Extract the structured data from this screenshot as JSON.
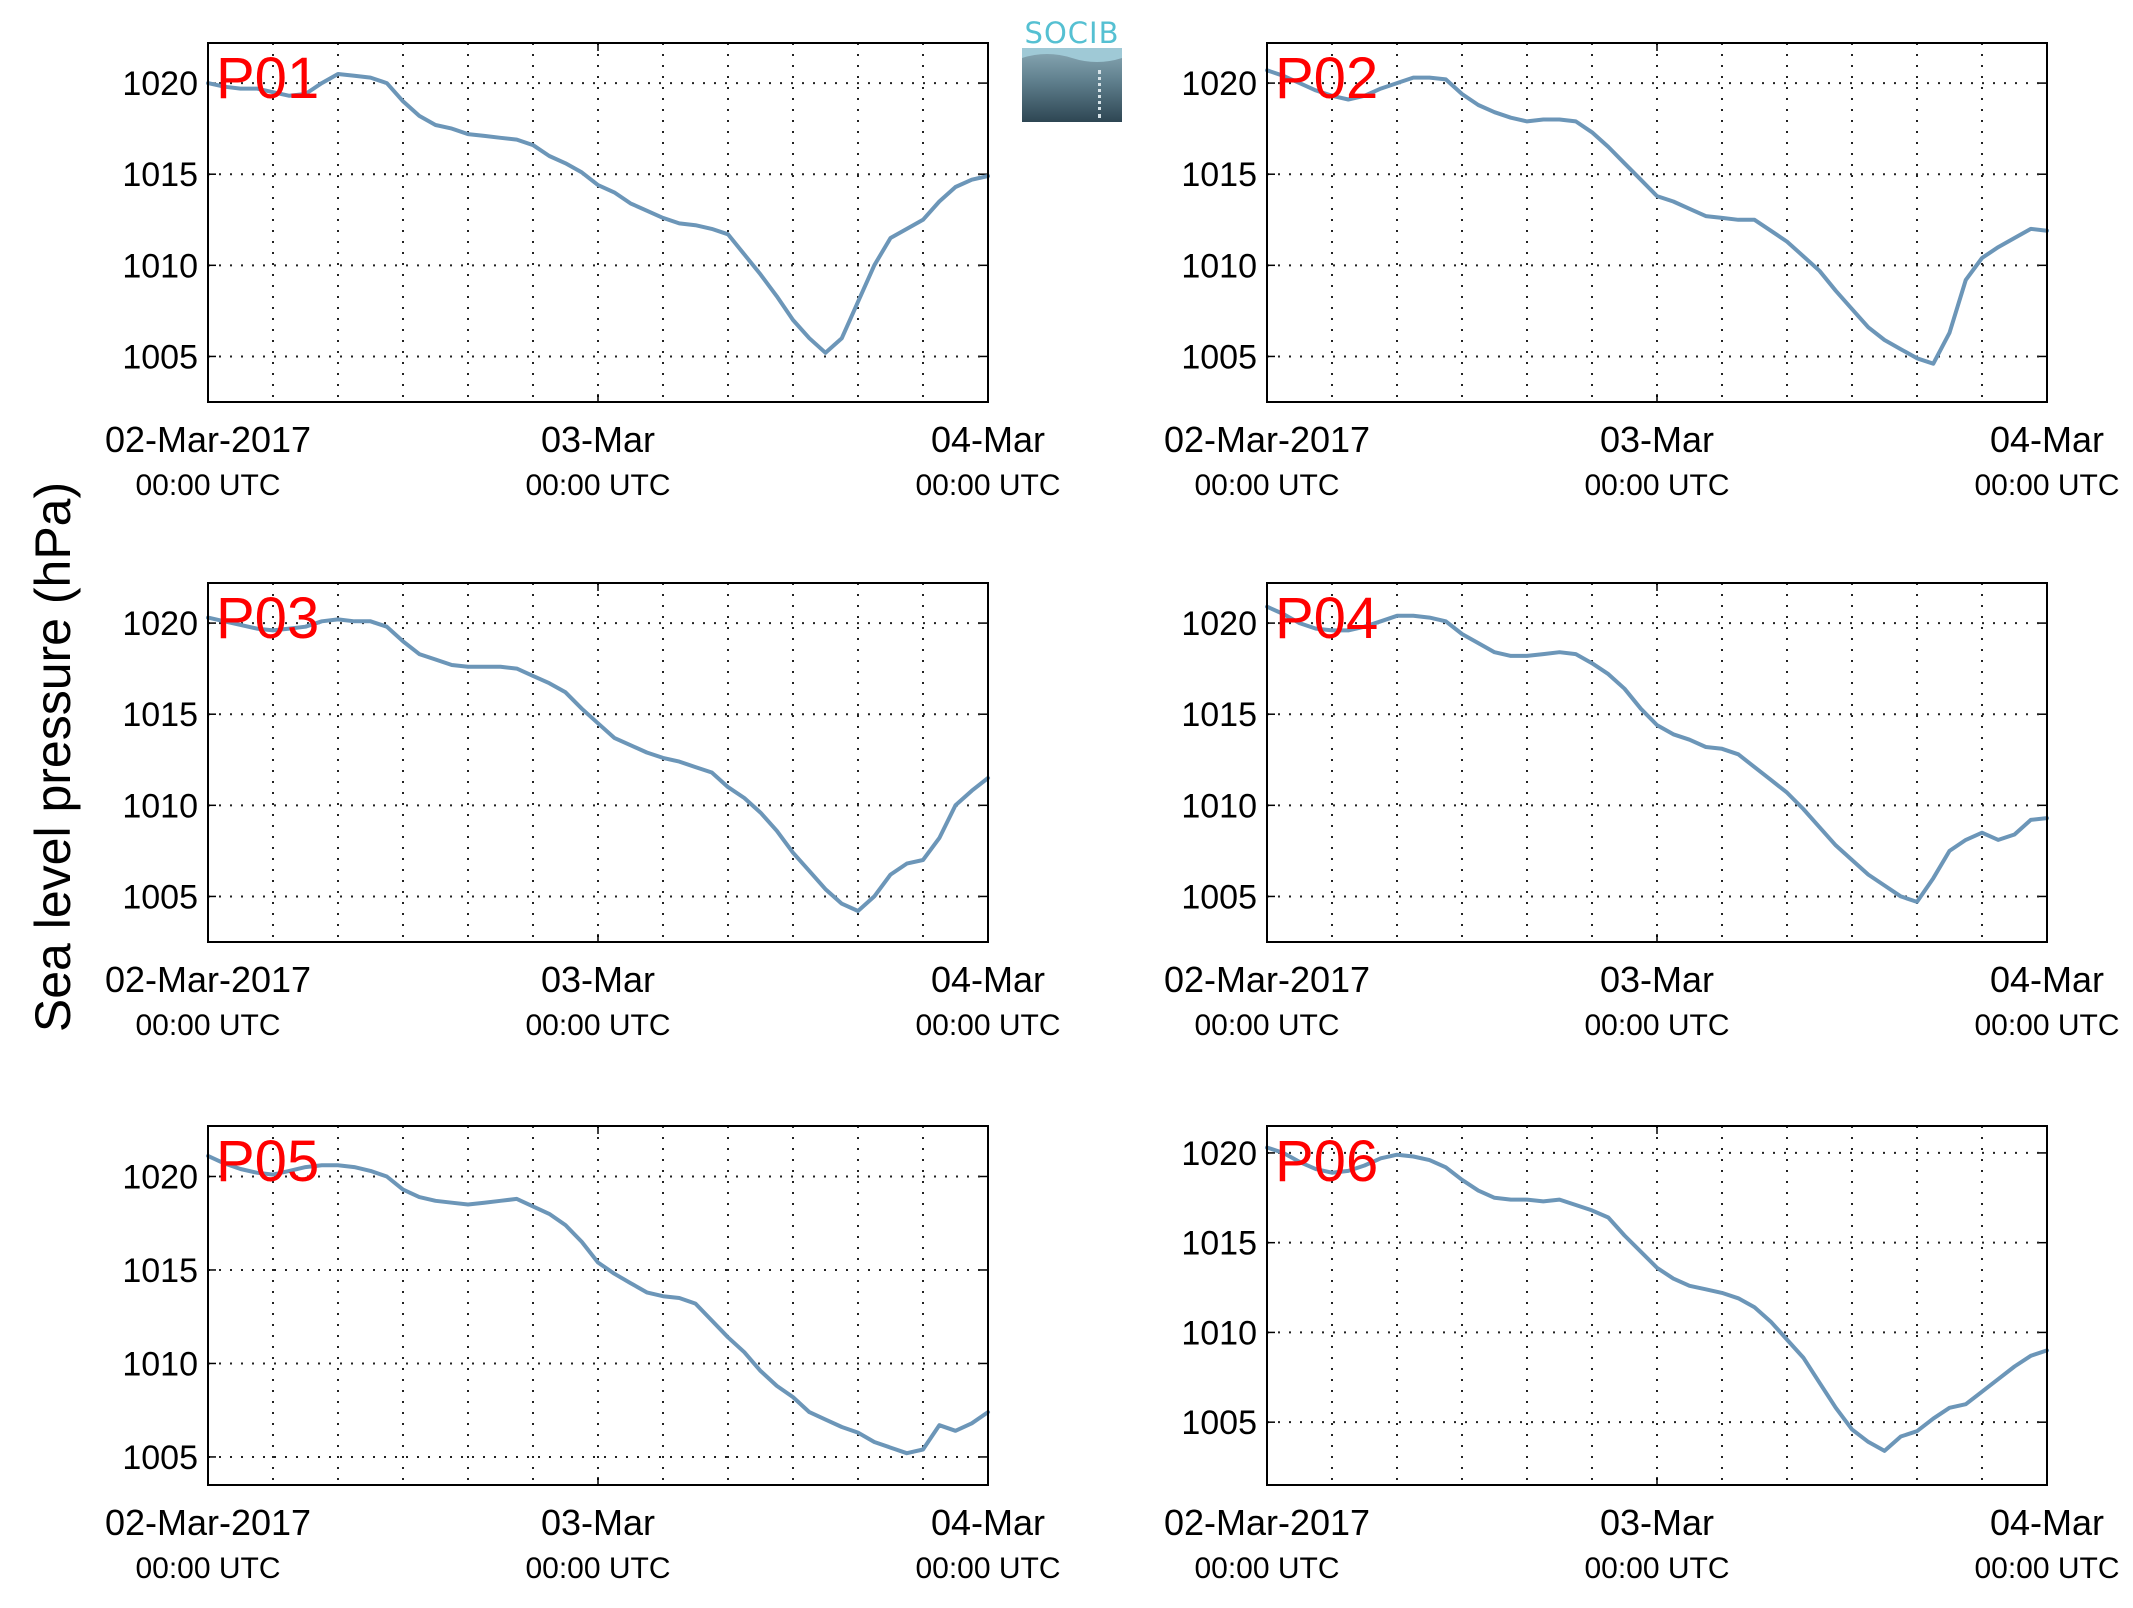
{
  "figure": {
    "ylabel": "Sea level pressure (hPa)",
    "logo_text": "SOCIB"
  },
  "chart_data": [
    {
      "type": "line",
      "title": "P01",
      "ylabel": "Sea level pressure (hPa)",
      "ylim": [
        1002.5,
        1022.2
      ],
      "yticks": [
        1005,
        1010,
        1015,
        1020
      ],
      "xlim": [
        0,
        48
      ],
      "xticks": [
        {
          "hour": 0,
          "line1": "02-Mar-2017",
          "line2": "00:00 UTC"
        },
        {
          "hour": 24,
          "line1": "03-Mar",
          "line2": "00:00 UTC"
        },
        {
          "hour": 48,
          "line1": "04-Mar",
          "line2": "00:00 UTC"
        }
      ],
      "grid": true,
      "series": [
        {
          "color": "#6c96b8",
          "x": [
            0,
            1,
            2,
            3,
            4,
            5,
            6,
            7,
            8,
            9,
            10,
            11,
            12,
            13,
            14,
            15,
            16,
            17,
            18,
            19,
            20,
            21,
            22,
            23,
            24,
            25,
            26,
            27,
            28,
            29,
            30,
            31,
            32,
            33,
            34,
            35,
            36,
            37,
            38,
            39,
            40,
            41,
            42,
            43,
            44,
            45,
            46,
            47,
            48
          ],
          "y": [
            1020.0,
            1019.8,
            1019.7,
            1019.7,
            1019.5,
            1019.3,
            1019.4,
            1020.0,
            1020.5,
            1020.4,
            1020.3,
            1020.0,
            1019.0,
            1018.2,
            1017.7,
            1017.5,
            1017.2,
            1017.1,
            1017.0,
            1016.9,
            1016.6,
            1016.0,
            1015.6,
            1015.1,
            1014.4,
            1014.0,
            1013.4,
            1013.0,
            1012.6,
            1012.3,
            1012.2,
            1012.0,
            1011.7,
            1010.6,
            1009.5,
            1008.3,
            1007.0,
            1006.0,
            1005.2,
            1006.0,
            1008.0,
            1010.0,
            1011.5,
            1012.0,
            1012.5,
            1013.5,
            1014.3,
            1014.7,
            1014.9
          ]
        }
      ]
    },
    {
      "type": "line",
      "title": "P02",
      "ylabel": "Sea level pressure (hPa)",
      "ylim": [
        1002.5,
        1022.2
      ],
      "yticks": [
        1005,
        1010,
        1015,
        1020
      ],
      "xlim": [
        0,
        48
      ],
      "xticks": [
        {
          "hour": 0,
          "line1": "02-Mar-2017",
          "line2": "00:00 UTC"
        },
        {
          "hour": 24,
          "line1": "03-Mar",
          "line2": "00:00 UTC"
        },
        {
          "hour": 48,
          "line1": "04-Mar",
          "line2": "00:00 UTC"
        }
      ],
      "grid": true,
      "series": [
        {
          "color": "#6c96b8",
          "x": [
            0,
            1,
            2,
            3,
            4,
            5,
            6,
            7,
            8,
            9,
            10,
            11,
            12,
            13,
            14,
            15,
            16,
            17,
            18,
            19,
            20,
            21,
            22,
            23,
            24,
            25,
            26,
            27,
            28,
            29,
            30,
            31,
            32,
            33,
            34,
            35,
            36,
            37,
            38,
            39,
            40,
            41,
            42,
            43,
            44,
            45,
            46,
            47,
            48
          ],
          "y": [
            1020.7,
            1020.4,
            1020.0,
            1019.6,
            1019.3,
            1019.1,
            1019.3,
            1019.7,
            1020.0,
            1020.3,
            1020.3,
            1020.2,
            1019.4,
            1018.8,
            1018.4,
            1018.1,
            1017.9,
            1018.0,
            1018.0,
            1017.9,
            1017.3,
            1016.5,
            1015.6,
            1014.7,
            1013.8,
            1013.5,
            1013.1,
            1012.7,
            1012.6,
            1012.5,
            1012.5,
            1011.9,
            1011.3,
            1010.5,
            1009.7,
            1008.6,
            1007.6,
            1006.6,
            1005.9,
            1005.4,
            1004.9,
            1004.6,
            1006.3,
            1009.2,
            1010.4,
            1011.0,
            1011.5,
            1012.0,
            1011.9
          ]
        }
      ]
    },
    {
      "type": "line",
      "title": "P03",
      "ylabel": "Sea level pressure (hPa)",
      "ylim": [
        1002.5,
        1022.2
      ],
      "yticks": [
        1005,
        1010,
        1015,
        1020
      ],
      "xlim": [
        0,
        48
      ],
      "xticks": [
        {
          "hour": 0,
          "line1": "02-Mar-2017",
          "line2": "00:00 UTC"
        },
        {
          "hour": 24,
          "line1": "03-Mar",
          "line2": "00:00 UTC"
        },
        {
          "hour": 48,
          "line1": "04-Mar",
          "line2": "00:00 UTC"
        }
      ],
      "grid": true,
      "series": [
        {
          "color": "#6c96b8",
          "x": [
            0,
            1,
            2,
            3,
            4,
            5,
            6,
            7,
            8,
            9,
            10,
            11,
            12,
            13,
            14,
            15,
            16,
            17,
            18,
            19,
            20,
            21,
            22,
            23,
            24,
            25,
            26,
            27,
            28,
            29,
            30,
            31,
            32,
            33,
            34,
            35,
            36,
            37,
            38,
            39,
            40,
            41,
            42,
            43,
            44,
            45,
            46,
            47,
            48
          ],
          "y": [
            1020.3,
            1020.1,
            1019.9,
            1019.7,
            1019.6,
            1019.7,
            1019.8,
            1020.1,
            1020.2,
            1020.1,
            1020.1,
            1019.8,
            1019.0,
            1018.3,
            1018.0,
            1017.7,
            1017.6,
            1017.6,
            1017.6,
            1017.5,
            1017.1,
            1016.7,
            1016.2,
            1015.3,
            1014.5,
            1013.7,
            1013.3,
            1012.9,
            1012.6,
            1012.4,
            1012.1,
            1011.8,
            1011.0,
            1010.4,
            1009.6,
            1008.6,
            1007.4,
            1006.4,
            1005.4,
            1004.6,
            1004.2,
            1005.0,
            1006.2,
            1006.8,
            1007.0,
            1008.2,
            1010.0,
            1010.8,
            1011.5
          ]
        }
      ]
    },
    {
      "type": "line",
      "title": "P04",
      "ylabel": "Sea level pressure (hPa)",
      "ylim": [
        1002.5,
        1022.2
      ],
      "yticks": [
        1005,
        1010,
        1015,
        1020
      ],
      "xlim": [
        0,
        48
      ],
      "xticks": [
        {
          "hour": 0,
          "line1": "02-Mar-2017",
          "line2": "00:00 UTC"
        },
        {
          "hour": 24,
          "line1": "03-Mar",
          "line2": "00:00 UTC"
        },
        {
          "hour": 48,
          "line1": "04-Mar",
          "line2": "00:00 UTC"
        }
      ],
      "grid": true,
      "series": [
        {
          "color": "#6c96b8",
          "x": [
            0,
            1,
            2,
            3,
            4,
            5,
            6,
            7,
            8,
            9,
            10,
            11,
            12,
            13,
            14,
            15,
            16,
            17,
            18,
            19,
            20,
            21,
            22,
            23,
            24,
            25,
            26,
            27,
            28,
            29,
            30,
            31,
            32,
            33,
            34,
            35,
            36,
            37,
            38,
            39,
            40,
            41,
            42,
            43,
            44,
            45,
            46,
            47,
            48
          ],
          "y": [
            1020.9,
            1020.5,
            1020.0,
            1019.7,
            1019.6,
            1019.6,
            1019.8,
            1020.1,
            1020.4,
            1020.4,
            1020.3,
            1020.1,
            1019.4,
            1018.9,
            1018.4,
            1018.2,
            1018.2,
            1018.3,
            1018.4,
            1018.3,
            1017.8,
            1017.2,
            1016.4,
            1015.3,
            1014.4,
            1013.9,
            1013.6,
            1013.2,
            1013.1,
            1012.8,
            1012.1,
            1011.4,
            1010.7,
            1009.8,
            1008.8,
            1007.8,
            1007.0,
            1006.2,
            1005.6,
            1005.0,
            1004.7,
            1006.0,
            1007.5,
            1008.1,
            1008.5,
            1008.1,
            1008.4,
            1009.2,
            1009.3
          ]
        }
      ]
    },
    {
      "type": "line",
      "title": "P05",
      "ylabel": "Sea level pressure (hPa)",
      "ylim": [
        1003.5,
        1022.7
      ],
      "yticks": [
        1005,
        1010,
        1015,
        1020
      ],
      "xlim": [
        0,
        48
      ],
      "xticks": [
        {
          "hour": 0,
          "line1": "02-Mar-2017",
          "line2": "00:00 UTC"
        },
        {
          "hour": 24,
          "line1": "03-Mar",
          "line2": "00:00 UTC"
        },
        {
          "hour": 48,
          "line1": "04-Mar",
          "line2": "00:00 UTC"
        }
      ],
      "grid": true,
      "series": [
        {
          "color": "#6c96b8",
          "x": [
            0,
            1,
            2,
            3,
            4,
            5,
            6,
            7,
            8,
            9,
            10,
            11,
            12,
            13,
            14,
            15,
            16,
            17,
            18,
            19,
            20,
            21,
            22,
            23,
            24,
            25,
            26,
            27,
            28,
            29,
            30,
            31,
            32,
            33,
            34,
            35,
            36,
            37,
            38,
            39,
            40,
            41,
            42,
            43,
            44,
            45,
            46,
            47,
            48
          ],
          "y": [
            1021.1,
            1020.7,
            1020.4,
            1020.2,
            1020.1,
            1020.3,
            1020.5,
            1020.6,
            1020.6,
            1020.5,
            1020.3,
            1020.0,
            1019.3,
            1018.9,
            1018.7,
            1018.6,
            1018.5,
            1018.6,
            1018.7,
            1018.8,
            1018.4,
            1018.0,
            1017.4,
            1016.5,
            1015.4,
            1014.8,
            1014.3,
            1013.8,
            1013.6,
            1013.5,
            1013.2,
            1012.3,
            1011.4,
            1010.6,
            1009.6,
            1008.8,
            1008.2,
            1007.4,
            1007.0,
            1006.6,
            1006.3,
            1005.8,
            1005.5,
            1005.2,
            1005.4,
            1006.7,
            1006.4,
            1006.8,
            1007.4
          ]
        }
      ]
    },
    {
      "type": "line",
      "title": "P06",
      "ylabel": "Sea level pressure (hPa)",
      "ylim": [
        1001.5,
        1021.5
      ],
      "yticks": [
        1005,
        1010,
        1015,
        1020
      ],
      "xlim": [
        0,
        48
      ],
      "xticks": [
        {
          "hour": 0,
          "line1": "02-Mar-2017",
          "line2": "00:00 UTC"
        },
        {
          "hour": 24,
          "line1": "03-Mar",
          "line2": "00:00 UTC"
        },
        {
          "hour": 48,
          "line1": "04-Mar",
          "line2": "00:00 UTC"
        }
      ],
      "grid": true,
      "series": [
        {
          "color": "#6c96b8",
          "x": [
            0,
            1,
            2,
            3,
            4,
            5,
            6,
            7,
            8,
            9,
            10,
            11,
            12,
            13,
            14,
            15,
            16,
            17,
            18,
            19,
            20,
            21,
            22,
            23,
            24,
            25,
            26,
            27,
            28,
            29,
            30,
            31,
            32,
            33,
            34,
            35,
            36,
            37,
            38,
            39,
            40,
            41,
            42,
            43,
            44,
            45,
            46,
            47,
            48
          ],
          "y": [
            1020.3,
            1020.0,
            1019.5,
            1019.1,
            1018.9,
            1019.0,
            1019.3,
            1019.7,
            1019.9,
            1019.8,
            1019.6,
            1019.2,
            1018.5,
            1017.9,
            1017.5,
            1017.4,
            1017.4,
            1017.3,
            1017.4,
            1017.1,
            1016.8,
            1016.4,
            1015.4,
            1014.5,
            1013.6,
            1013.0,
            1012.6,
            1012.4,
            1012.2,
            1011.9,
            1011.4,
            1010.6,
            1009.6,
            1008.6,
            1007.2,
            1005.8,
            1004.6,
            1003.9,
            1003.4,
            1004.2,
            1004.5,
            1005.2,
            1005.8,
            1006.0,
            1006.7,
            1007.4,
            1008.1,
            1008.7,
            1009.0
          ]
        }
      ]
    }
  ]
}
